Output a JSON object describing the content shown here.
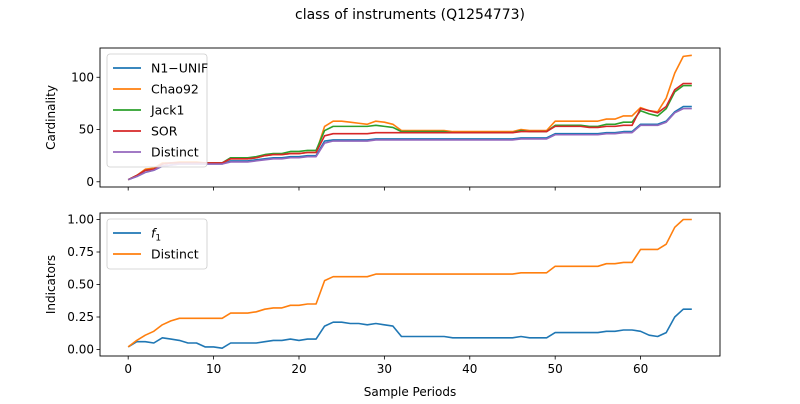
{
  "figure": {
    "title": "class of instruments (Q1254773)"
  },
  "chart_data": [
    {
      "type": "line",
      "title": "",
      "xlabel": "",
      "ylabel": "Cardinality",
      "xlim": [
        -3.3,
        69.3
      ],
      "ylim": [
        -5,
        128
      ],
      "xticks": [
        0,
        10,
        20,
        30,
        40,
        50,
        60
      ],
      "yticks": [
        0,
        50,
        100
      ],
      "ytick_labels": [
        "0",
        "50",
        "100"
      ],
      "xtick_labels_visible": false,
      "grid": false,
      "legend": "upper left",
      "x": [
        0,
        1,
        2,
        3,
        4,
        5,
        6,
        7,
        8,
        9,
        10,
        11,
        12,
        13,
        14,
        15,
        16,
        17,
        18,
        19,
        20,
        21,
        22,
        23,
        24,
        25,
        26,
        27,
        28,
        29,
        30,
        31,
        32,
        33,
        34,
        35,
        36,
        37,
        38,
        39,
        40,
        41,
        42,
        43,
        44,
        45,
        46,
        47,
        48,
        49,
        50,
        51,
        52,
        53,
        54,
        55,
        56,
        57,
        58,
        59,
        60,
        61,
        62,
        63,
        64,
        65,
        66
      ],
      "series": [
        {
          "name": "N1−UNIF",
          "color": "#1f77b4",
          "values": [
            2,
            5,
            9,
            11,
            15,
            16,
            17,
            17,
            17,
            17,
            17,
            17,
            20,
            20,
            20,
            21,
            22,
            23,
            23,
            24,
            24,
            25,
            25,
            39,
            40,
            40,
            40,
            40,
            40,
            41,
            41,
            41,
            41,
            41,
            41,
            41,
            41,
            41,
            41,
            41,
            41,
            41,
            41,
            41,
            41,
            41,
            42,
            42,
            42,
            42,
            46,
            46,
            46,
            46,
            46,
            46,
            47,
            47,
            48,
            48,
            55,
            55,
            55,
            58,
            67,
            72,
            72
          ]
        },
        {
          "name": "Chao92",
          "color": "#ff7f0e",
          "values": [
            2,
            6,
            12,
            13,
            18,
            18,
            19,
            19,
            19,
            18,
            18,
            18,
            22,
            22,
            22,
            23,
            25,
            26,
            26,
            27,
            27,
            28,
            28,
            53,
            58,
            58,
            57,
            56,
            55,
            58,
            57,
            55,
            49,
            49,
            49,
            49,
            49,
            49,
            48,
            48,
            48,
            48,
            48,
            48,
            48,
            48,
            50,
            49,
            49,
            49,
            58,
            58,
            58,
            58,
            58,
            58,
            60,
            60,
            63,
            63,
            71,
            68,
            67,
            80,
            104,
            120,
            121
          ]
        },
        {
          "name": "Jack1",
          "color": "#2ca02c",
          "values": [
            2,
            6,
            11,
            12,
            17,
            18,
            18,
            18,
            18,
            18,
            18,
            18,
            23,
            23,
            23,
            24,
            26,
            27,
            27,
            29,
            29,
            30,
            30,
            49,
            53,
            53,
            53,
            53,
            53,
            54,
            53,
            52,
            48,
            48,
            48,
            48,
            48,
            48,
            47,
            47,
            47,
            47,
            47,
            47,
            47,
            47,
            49,
            48,
            48,
            48,
            54,
            54,
            54,
            54,
            53,
            53,
            55,
            55,
            57,
            57,
            68,
            65,
            63,
            70,
            86,
            92,
            92
          ]
        },
        {
          "name": "SOR",
          "color": "#d62728",
          "values": [
            2,
            6,
            11,
            12,
            17,
            18,
            18,
            18,
            18,
            18,
            18,
            18,
            22,
            22,
            22,
            23,
            25,
            26,
            26,
            27,
            27,
            28,
            28,
            44,
            46,
            46,
            46,
            46,
            46,
            47,
            47,
            47,
            47,
            47,
            47,
            47,
            47,
            47,
            47,
            47,
            47,
            47,
            47,
            47,
            47,
            47,
            48,
            48,
            48,
            48,
            53,
            53,
            53,
            53,
            52,
            52,
            53,
            53,
            54,
            54,
            70,
            68,
            66,
            72,
            88,
            94,
            94
          ]
        },
        {
          "name": "Distinct",
          "color": "#9467bd",
          "values": [
            2,
            5,
            9,
            11,
            15,
            16,
            17,
            17,
            17,
            17,
            17,
            17,
            19,
            19,
            19,
            20,
            21,
            22,
            22,
            23,
            23,
            24,
            24,
            37,
            39,
            39,
            39,
            39,
            39,
            40,
            40,
            40,
            40,
            40,
            40,
            40,
            40,
            40,
            40,
            40,
            40,
            40,
            40,
            40,
            40,
            40,
            41,
            41,
            41,
            41,
            45,
            45,
            45,
            45,
            45,
            45,
            46,
            46,
            47,
            47,
            54,
            54,
            54,
            57,
            66,
            70,
            70
          ]
        }
      ]
    },
    {
      "type": "line",
      "title": "",
      "xlabel": "Sample Periods",
      "ylabel": "Indicators",
      "xlim": [
        -3.3,
        69.3
      ],
      "ylim": [
        -0.05,
        1.05
      ],
      "xticks": [
        0,
        10,
        20,
        30,
        40,
        50,
        60
      ],
      "xtick_labels": [
        "0",
        "10",
        "20",
        "30",
        "40",
        "50",
        "60"
      ],
      "yticks": [
        0,
        0.25,
        0.5,
        0.75,
        1.0
      ],
      "ytick_labels": [
        "0.00",
        "0.25",
        "0.50",
        "0.75",
        "1.00"
      ],
      "grid": false,
      "legend": "upper left",
      "x": [
        0,
        1,
        2,
        3,
        4,
        5,
        6,
        7,
        8,
        9,
        10,
        11,
        12,
        13,
        14,
        15,
        16,
        17,
        18,
        19,
        20,
        21,
        22,
        23,
        24,
        25,
        26,
        27,
        28,
        29,
        30,
        31,
        32,
        33,
        34,
        35,
        36,
        37,
        38,
        39,
        40,
        41,
        42,
        43,
        44,
        45,
        46,
        47,
        48,
        49,
        50,
        51,
        52,
        53,
        54,
        55,
        56,
        57,
        58,
        59,
        60,
        61,
        62,
        63,
        64,
        65,
        66
      ],
      "series": [
        {
          "name": "f1",
          "name_base": "f",
          "name_sub": "1",
          "color": "#1f77b4",
          "values": [
            0.02,
            0.06,
            0.06,
            0.05,
            0.09,
            0.08,
            0.07,
            0.05,
            0.05,
            0.02,
            0.02,
            0.01,
            0.05,
            0.05,
            0.05,
            0.05,
            0.06,
            0.07,
            0.07,
            0.08,
            0.07,
            0.08,
            0.08,
            0.18,
            0.21,
            0.21,
            0.2,
            0.2,
            0.19,
            0.2,
            0.19,
            0.18,
            0.1,
            0.1,
            0.1,
            0.1,
            0.1,
            0.1,
            0.09,
            0.09,
            0.09,
            0.09,
            0.09,
            0.09,
            0.09,
            0.09,
            0.1,
            0.09,
            0.09,
            0.09,
            0.13,
            0.13,
            0.13,
            0.13,
            0.13,
            0.13,
            0.14,
            0.14,
            0.15,
            0.15,
            0.14,
            0.11,
            0.1,
            0.13,
            0.25,
            0.31,
            0.31
          ]
        },
        {
          "name": "Distinct",
          "color": "#ff7f0e",
          "values": [
            0.02,
            0.07,
            0.11,
            0.14,
            0.19,
            0.22,
            0.24,
            0.24,
            0.24,
            0.24,
            0.24,
            0.24,
            0.28,
            0.28,
            0.28,
            0.29,
            0.31,
            0.32,
            0.32,
            0.34,
            0.34,
            0.35,
            0.35,
            0.53,
            0.56,
            0.56,
            0.56,
            0.56,
            0.56,
            0.58,
            0.58,
            0.58,
            0.58,
            0.58,
            0.58,
            0.58,
            0.58,
            0.58,
            0.58,
            0.58,
            0.58,
            0.58,
            0.58,
            0.58,
            0.58,
            0.58,
            0.59,
            0.59,
            0.59,
            0.59,
            0.64,
            0.64,
            0.64,
            0.64,
            0.64,
            0.64,
            0.66,
            0.66,
            0.67,
            0.67,
            0.77,
            0.77,
            0.77,
            0.81,
            0.94,
            1.0,
            1.0
          ]
        }
      ]
    }
  ]
}
